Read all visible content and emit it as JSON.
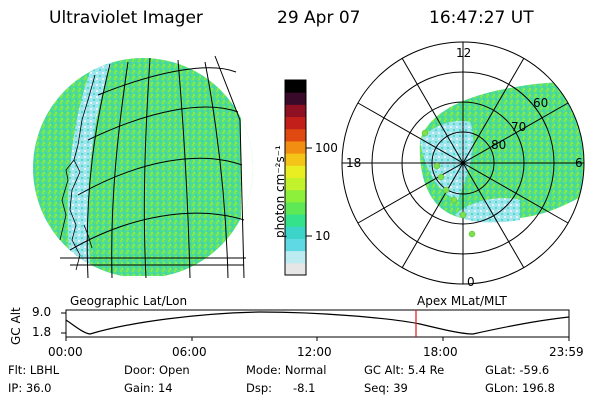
{
  "header": {
    "instrument": "Ultraviolet Imager",
    "date": "29 Apr 07",
    "time": "16:47:27 UT"
  },
  "colorbar": {
    "unit_label": "photon cm⁻²s⁻¹",
    "ticks": [
      "100",
      "10"
    ],
    "scale": "log",
    "colors": [
      "#e6e6e6",
      "#bdebf2",
      "#5fd9e3",
      "#3cd3c9",
      "#35e28c",
      "#5fe855",
      "#8df03a",
      "#c2f22b",
      "#e8ee22",
      "#f5c418",
      "#f28e12",
      "#e04a10",
      "#c21f1a",
      "#8f1022",
      "#3a0a2a",
      "#000000"
    ]
  },
  "left_panel": {
    "label": "Geographic Lat/Lon",
    "image_colors": [
      "#3cd6a0",
      "#6fe34e",
      "#5fd9e3",
      "#d9eef0"
    ]
  },
  "right_panel": {
    "label": "Apex MLat/MLT",
    "mlt_labels": [
      "12",
      "18",
      "6",
      "0"
    ],
    "mlat_labels": [
      "60",
      "70",
      "80"
    ]
  },
  "altitude_plot": {
    "ylabel": "GC Alt",
    "yticks": [
      "9.0",
      "1.8"
    ],
    "xticks": [
      "00:00",
      "06:00",
      "12:00",
      "18:00",
      "23:59"
    ],
    "current_marker_time": "16:47:27",
    "marker_color": "#e0151c"
  },
  "info": {
    "flt": "Flt: LBHL",
    "ip": "IP: 36.0",
    "door": "Door: Open",
    "gain": "Gain: 14",
    "mode": "Mode: Normal",
    "dsp_label": "Dsp:",
    "dsp_value": "-8.1",
    "gc_alt": "GC Alt: 5.4 Re",
    "seq": "Seq: 39",
    "glat": "GLat: -59.6",
    "glon": "GLon: 196.8"
  }
}
